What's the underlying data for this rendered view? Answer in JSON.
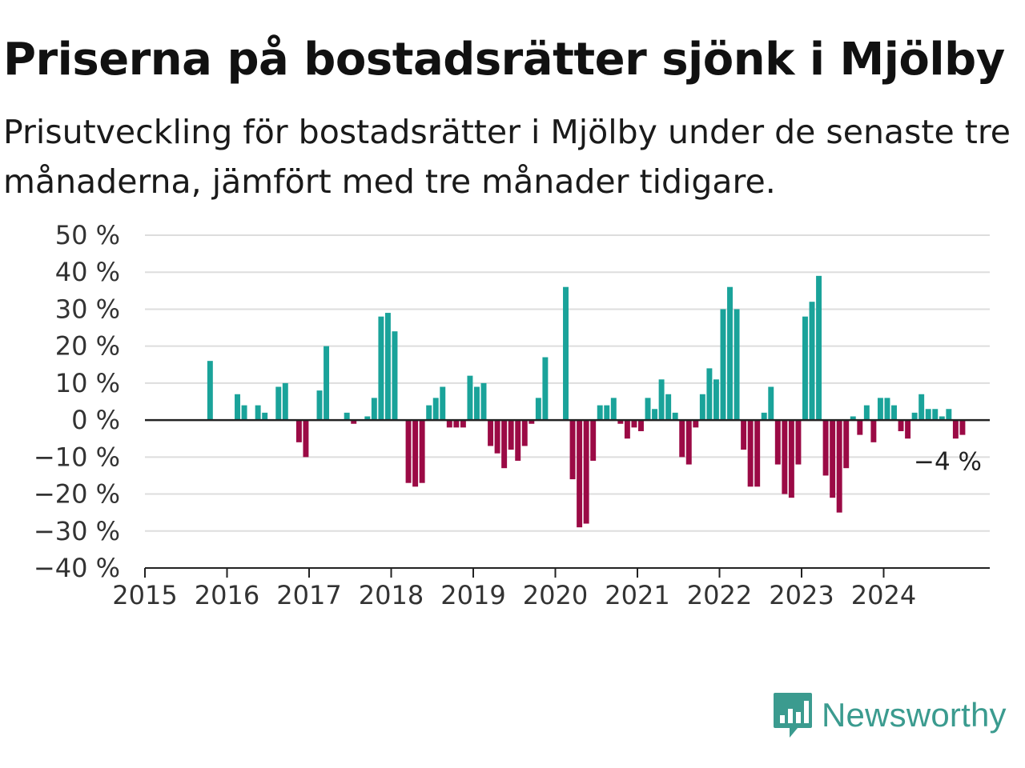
{
  "title": "Priserna på bostadsrätter sjönk i Mjölby",
  "subtitle": "Prisutveckling för bostadsrätter i Mjölby under de senaste tre månaderna, jämfört med tre månader tidigare.",
  "logo": {
    "text": "Newsworthy",
    "icon": "newsworthy-chart-icon",
    "color": "#3b9b8f"
  },
  "chart_data": {
    "type": "bar",
    "title": "Priserna på bostadsrätter sjönk i Mjölby",
    "xlabel": "",
    "ylabel": "",
    "ylim": [
      -40,
      50
    ],
    "yticks": [
      50,
      40,
      30,
      20,
      10,
      0,
      -10,
      -20,
      -30,
      -40
    ],
    "ytick_labels": [
      "50 %",
      "40 %",
      "30 %",
      "20 %",
      "10 %",
      "0 %",
      "−10 %",
      "−20 %",
      "−30 %",
      "−40 %"
    ],
    "xticks": [
      "2015",
      "2016",
      "2017",
      "2018",
      "2019",
      "2020",
      "2021",
      "2022",
      "2023",
      "2024"
    ],
    "grid": true,
    "colors": {
      "positive": "#1aa39a",
      "negative": "#9b0a45",
      "grid": "#dddddd",
      "axis": "#222222"
    },
    "last_value_label": "−4 %",
    "x": [
      "2015-01",
      "2015-02",
      "2015-03",
      "2015-04",
      "2015-05",
      "2015-06",
      "2015-07",
      "2015-08",
      "2015-09",
      "2015-10",
      "2015-11",
      "2015-12",
      "2016-01",
      "2016-02",
      "2016-03",
      "2016-04",
      "2016-05",
      "2016-06",
      "2016-07",
      "2016-08",
      "2016-09",
      "2016-10",
      "2016-11",
      "2016-12",
      "2017-01",
      "2017-02",
      "2017-03",
      "2017-04",
      "2017-05",
      "2017-06",
      "2017-07",
      "2017-08",
      "2017-09",
      "2017-10",
      "2017-11",
      "2017-12",
      "2018-01",
      "2018-02",
      "2018-03",
      "2018-04",
      "2018-05",
      "2018-06",
      "2018-07",
      "2018-08",
      "2018-09",
      "2018-10",
      "2018-11",
      "2018-12",
      "2019-01",
      "2019-02",
      "2019-03",
      "2019-04",
      "2019-05",
      "2019-06",
      "2019-07",
      "2019-08",
      "2019-09",
      "2019-10",
      "2019-11",
      "2019-12",
      "2020-01",
      "2020-02",
      "2020-03",
      "2020-04",
      "2020-05",
      "2020-06",
      "2020-07",
      "2020-08",
      "2020-09",
      "2020-10",
      "2020-11",
      "2020-12",
      "2021-01",
      "2021-02",
      "2021-03",
      "2021-04",
      "2021-05",
      "2021-06",
      "2021-07",
      "2021-08",
      "2021-09",
      "2021-10",
      "2021-11",
      "2021-12",
      "2022-01",
      "2022-02",
      "2022-03",
      "2022-04",
      "2022-05",
      "2022-06",
      "2022-07",
      "2022-08",
      "2022-09",
      "2022-10",
      "2022-11",
      "2022-12",
      "2023-01",
      "2023-02",
      "2023-03",
      "2023-04",
      "2023-05",
      "2023-06",
      "2023-07",
      "2023-08",
      "2023-09",
      "2023-10",
      "2023-11",
      "2023-12",
      "2024-01",
      "2024-02",
      "2024-03",
      "2024-04",
      "2024-05",
      "2024-06",
      "2024-07",
      "2024-08",
      "2024-09",
      "2024-10",
      "2024-11",
      "2024-12"
    ],
    "values": [
      null,
      null,
      null,
      null,
      null,
      null,
      null,
      null,
      null,
      16,
      null,
      null,
      null,
      7,
      4,
      null,
      4,
      2,
      null,
      9,
      10,
      null,
      -6,
      -10,
      null,
      8,
      20,
      null,
      null,
      2,
      -1,
      null,
      1,
      6,
      28,
      29,
      24,
      null,
      -17,
      -18,
      -17,
      4,
      6,
      9,
      -2,
      -2,
      -2,
      12,
      9,
      10,
      -7,
      -9,
      -13,
      -8,
      -11,
      -7,
      -1,
      6,
      17,
      null,
      null,
      36,
      -16,
      -29,
      -28,
      -11,
      4,
      4,
      6,
      -1,
      -5,
      -2,
      -3,
      6,
      3,
      11,
      7,
      2,
      -10,
      -12,
      -2,
      7,
      14,
      11,
      30,
      36,
      30,
      -8,
      -18,
      -18,
      2,
      9,
      -12,
      -20,
      -21,
      -12,
      28,
      32,
      39,
      -15,
      -21,
      -25,
      -13,
      1,
      -4,
      4,
      -6,
      6,
      6,
      4,
      -3,
      -5,
      2,
      7,
      3,
      3,
      1,
      3,
      -5,
      -4
    ]
  }
}
